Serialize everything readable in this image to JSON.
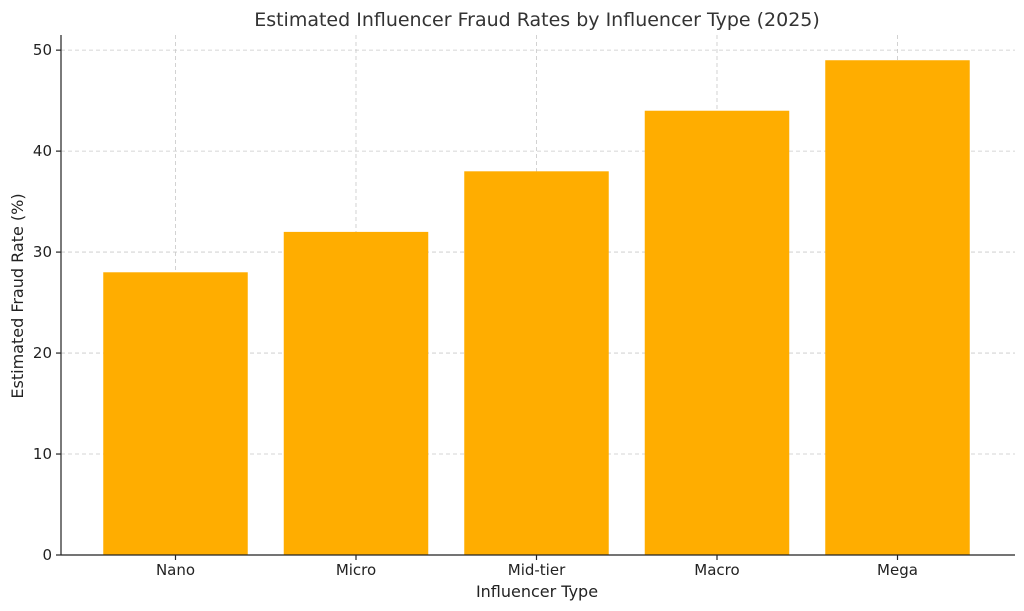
{
  "chart_data": {
    "type": "bar",
    "title": "Estimated Influencer Fraud Rates by Influencer Type (2025)",
    "xlabel": "Influencer Type",
    "ylabel": "Estimated Fraud Rate (%)",
    "categories": [
      "Nano",
      "Micro",
      "Mid-tier",
      "Macro",
      "Mega"
    ],
    "values": [
      28,
      32,
      38,
      44,
      49
    ],
    "ylim": [
      0,
      51.5
    ],
    "yticks": [
      0,
      10,
      20,
      30,
      40,
      50
    ],
    "bar_color": "#FFAD00",
    "grid": true,
    "legend": "none"
  }
}
